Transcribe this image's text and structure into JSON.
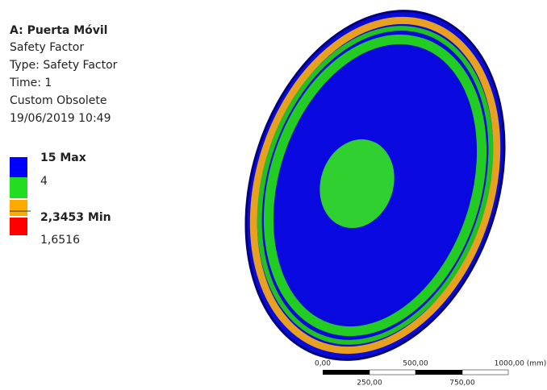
{
  "header": {
    "title": "A: Puerta Móvil",
    "lines": [
      "Safety Factor",
      "Type: Safety Factor",
      "Time: 1",
      "Custom Obsolete",
      "19/06/2019 10:49"
    ]
  },
  "legend": [
    {
      "label": "15 Max",
      "color": "#0000ff"
    },
    {
      "label": "4",
      "color": "#22dd22"
    },
    {
      "label": "2,3453 Min",
      "color": "#ffaa00"
    },
    {
      "label": "1,6516",
      "color": "#ff0000"
    }
  ],
  "scale": {
    "top": [
      "0,00",
      "500,00",
      "1000,00 (mm)"
    ],
    "bottom": [
      "250,00",
      "750,00"
    ]
  }
}
